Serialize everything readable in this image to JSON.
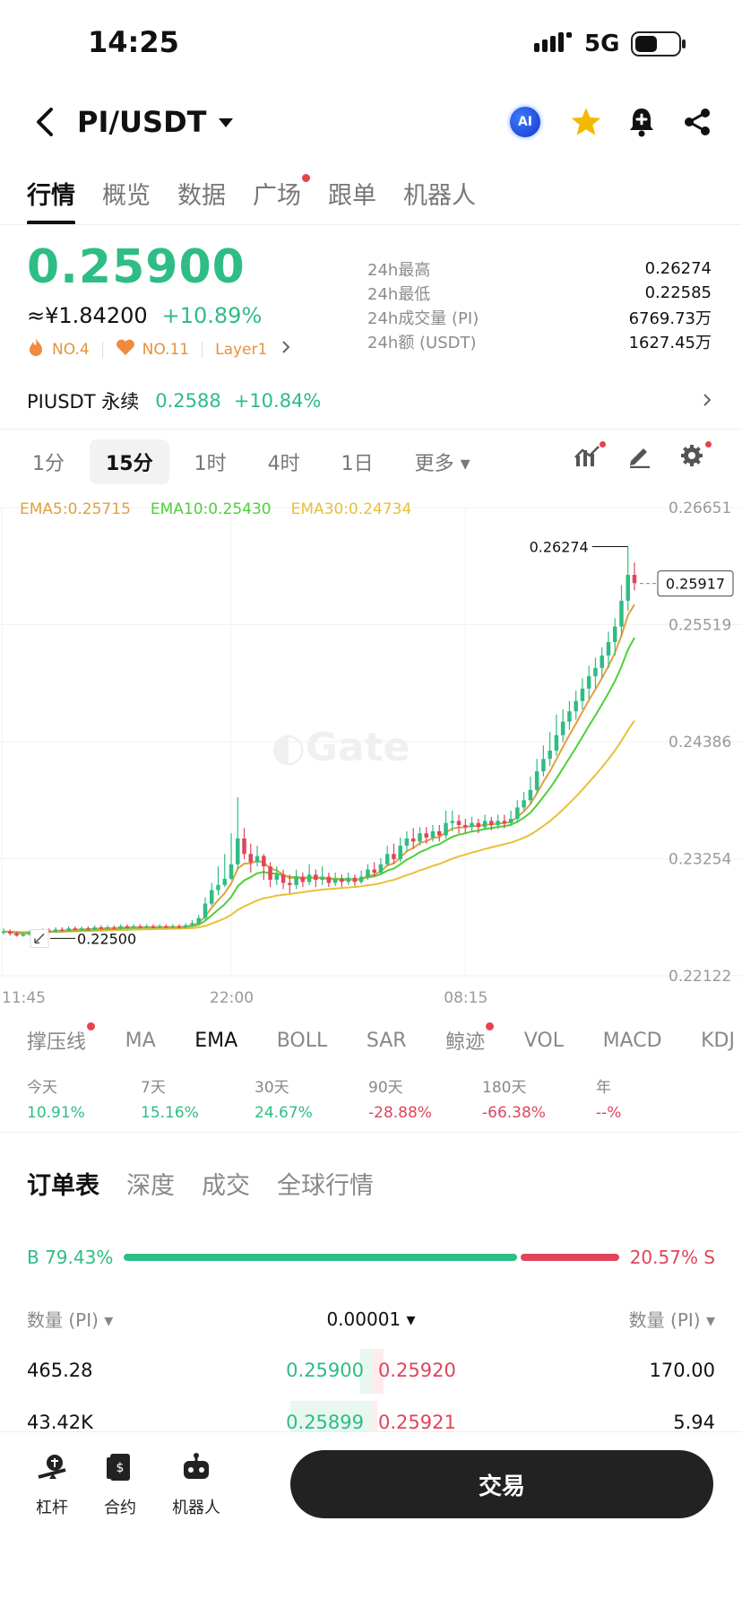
{
  "status_bar": {
    "time": "14:25",
    "network": "5G"
  },
  "header": {
    "pair": "PI/USDT",
    "ai_label": "AI"
  },
  "tabs": [
    {
      "label": "行情",
      "active": true
    },
    {
      "label": "概览"
    },
    {
      "label": "数据"
    },
    {
      "label": "广场",
      "dot": true
    },
    {
      "label": "跟单"
    },
    {
      "label": "机器人"
    }
  ],
  "price": {
    "last": "0.25900",
    "cny": "≈¥1.84200",
    "change": "+10.89%",
    "tags": [
      "NO.4",
      "NO.11",
      "Layer1"
    ]
  },
  "stats": [
    {
      "label": "24h最高",
      "value": "0.26274"
    },
    {
      "label": "24h最低",
      "value": "0.22585"
    },
    {
      "label": "24h成交量 (PI)",
      "value": "6769.73万"
    },
    {
      "label": "24h额 (USDT)",
      "value": "1627.45万"
    }
  ],
  "perp": {
    "name": "PIUSDT 永续",
    "price": "0.2588",
    "change": "+10.84%"
  },
  "timeframes": [
    {
      "label": "1分"
    },
    {
      "label": "15分",
      "active": true
    },
    {
      "label": "1时"
    },
    {
      "label": "4时"
    },
    {
      "label": "1日"
    },
    {
      "label": "更多 ▾"
    }
  ],
  "ema": {
    "ema5": "EMA5:0.25715",
    "ema10": "EMA10:0.25430",
    "ema30": "EMA30:0.24734"
  },
  "colors": {
    "up": "#2ebd85",
    "down": "#e0455b",
    "ema5": "#e2a03d",
    "ema10": "#4fcf3b",
    "ema30": "#e8c03a"
  },
  "chart_data": {
    "type": "candlestick",
    "y_ticks": [
      "0.26651",
      "0.25519",
      "0.24386",
      "0.23254",
      "0.22122"
    ],
    "x_ticks": [
      "11:45",
      "22:00",
      "08:15"
    ],
    "ylim": [
      0.22122,
      0.26651
    ],
    "high_label": "0.26274",
    "low_label": "0.22500",
    "current_label": "0.25917",
    "watermark": "Gate",
    "candles": [
      [
        0.2255,
        0.2255,
        0.2258,
        0.2252
      ],
      [
        0.2255,
        0.2253,
        0.2257,
        0.2251
      ],
      [
        0.2253,
        0.2251,
        0.2255,
        0.225
      ],
      [
        0.2251,
        0.2252,
        0.2254,
        0.225
      ],
      [
        0.2252,
        0.2254,
        0.2256,
        0.2251
      ],
      [
        0.2254,
        0.2255,
        0.2257,
        0.2253
      ],
      [
        0.2255,
        0.2256,
        0.2258,
        0.2254
      ],
      [
        0.2256,
        0.2255,
        0.2258,
        0.2254
      ],
      [
        0.2255,
        0.2257,
        0.2259,
        0.2254
      ],
      [
        0.2257,
        0.2256,
        0.2259,
        0.2255
      ],
      [
        0.2256,
        0.2258,
        0.226,
        0.2255
      ],
      [
        0.2258,
        0.2257,
        0.226,
        0.2256
      ],
      [
        0.2257,
        0.2258,
        0.226,
        0.2256
      ],
      [
        0.2258,
        0.2257,
        0.226,
        0.2256
      ],
      [
        0.2257,
        0.2259,
        0.2261,
        0.2256
      ],
      [
        0.2259,
        0.2258,
        0.2261,
        0.2257
      ],
      [
        0.2258,
        0.2259,
        0.2261,
        0.2257
      ],
      [
        0.2259,
        0.2258,
        0.2261,
        0.2257
      ],
      [
        0.2258,
        0.226,
        0.2262,
        0.2257
      ],
      [
        0.226,
        0.2259,
        0.2262,
        0.2258
      ],
      [
        0.2259,
        0.226,
        0.2262,
        0.2258
      ],
      [
        0.226,
        0.2259,
        0.2262,
        0.2258
      ],
      [
        0.2259,
        0.226,
        0.2262,
        0.2258
      ],
      [
        0.226,
        0.2259,
        0.2262,
        0.2258
      ],
      [
        0.2259,
        0.226,
        0.2262,
        0.2258
      ],
      [
        0.226,
        0.2259,
        0.2262,
        0.2258
      ],
      [
        0.2259,
        0.226,
        0.2262,
        0.2258
      ],
      [
        0.226,
        0.2259,
        0.2262,
        0.2258
      ],
      [
        0.2259,
        0.2261,
        0.2263,
        0.2258
      ],
      [
        0.2261,
        0.2263,
        0.2266,
        0.226
      ],
      [
        0.2263,
        0.2268,
        0.2271,
        0.2262
      ],
      [
        0.2268,
        0.2282,
        0.2288,
        0.2266
      ],
      [
        0.2282,
        0.2295,
        0.2302,
        0.228
      ],
      [
        0.2295,
        0.23,
        0.2318,
        0.229
      ],
      [
        0.23,
        0.2306,
        0.233,
        0.2298
      ],
      [
        0.2306,
        0.232,
        0.235,
        0.2305
      ],
      [
        0.232,
        0.2345,
        0.2385,
        0.2315
      ],
      [
        0.2345,
        0.233,
        0.2355,
        0.2325
      ],
      [
        0.233,
        0.2322,
        0.234,
        0.2312
      ],
      [
        0.2322,
        0.2328,
        0.2338,
        0.2318
      ],
      [
        0.2328,
        0.2318,
        0.233,
        0.2305
      ],
      [
        0.2318,
        0.2305,
        0.2322,
        0.2298
      ],
      [
        0.2305,
        0.231,
        0.2318,
        0.23
      ],
      [
        0.231,
        0.2302,
        0.2315,
        0.2296
      ],
      [
        0.2302,
        0.23,
        0.231,
        0.2292
      ],
      [
        0.23,
        0.2308,
        0.2315,
        0.2296
      ],
      [
        0.2308,
        0.2303,
        0.2312,
        0.2298
      ],
      [
        0.2303,
        0.231,
        0.232,
        0.23
      ],
      [
        0.231,
        0.2305,
        0.2315,
        0.2298
      ],
      [
        0.2305,
        0.2308,
        0.2318,
        0.23
      ],
      [
        0.2308,
        0.2302,
        0.2312,
        0.2298
      ],
      [
        0.2302,
        0.2306,
        0.2312,
        0.2299
      ],
      [
        0.2306,
        0.2303,
        0.231,
        0.2298
      ],
      [
        0.2303,
        0.2307,
        0.2312,
        0.23
      ],
      [
        0.2307,
        0.2303,
        0.231,
        0.2299
      ],
      [
        0.2303,
        0.2308,
        0.2314,
        0.2301
      ],
      [
        0.2308,
        0.2315,
        0.232,
        0.2305
      ],
      [
        0.2315,
        0.2312,
        0.2322,
        0.2308
      ],
      [
        0.2312,
        0.232,
        0.2326,
        0.231
      ],
      [
        0.232,
        0.233,
        0.2338,
        0.2318
      ],
      [
        0.233,
        0.2325,
        0.234,
        0.232
      ],
      [
        0.2325,
        0.2338,
        0.2346,
        0.2322
      ],
      [
        0.2338,
        0.2345,
        0.2352,
        0.2332
      ],
      [
        0.2345,
        0.2342,
        0.2355,
        0.2335
      ],
      [
        0.2342,
        0.235,
        0.2356,
        0.2338
      ],
      [
        0.235,
        0.2346,
        0.2356,
        0.234
      ],
      [
        0.2346,
        0.2352,
        0.2358,
        0.2342
      ],
      [
        0.2352,
        0.2348,
        0.2358,
        0.2342
      ],
      [
        0.2348,
        0.236,
        0.2372,
        0.2345
      ],
      [
        0.236,
        0.2362,
        0.2372,
        0.2352
      ],
      [
        0.2362,
        0.2358,
        0.2368,
        0.235
      ],
      [
        0.2358,
        0.2356,
        0.2364,
        0.235
      ],
      [
        0.2356,
        0.236,
        0.2366,
        0.2352
      ],
      [
        0.236,
        0.2356,
        0.2364,
        0.235
      ],
      [
        0.2356,
        0.2362,
        0.2368,
        0.2353
      ],
      [
        0.2362,
        0.2358,
        0.2366,
        0.2353
      ],
      [
        0.2358,
        0.2362,
        0.2368,
        0.2354
      ],
      [
        0.2362,
        0.236,
        0.2368,
        0.2355
      ],
      [
        0.236,
        0.2364,
        0.2372,
        0.2357
      ],
      [
        0.2364,
        0.2375,
        0.2382,
        0.236
      ],
      [
        0.2375,
        0.2382,
        0.239,
        0.2372
      ],
      [
        0.2382,
        0.2392,
        0.2405,
        0.2378
      ],
      [
        0.2392,
        0.241,
        0.2422,
        0.2388
      ],
      [
        0.241,
        0.2422,
        0.2435,
        0.2405
      ],
      [
        0.2422,
        0.243,
        0.2448,
        0.2415
      ],
      [
        0.243,
        0.2445,
        0.2465,
        0.2425
      ],
      [
        0.2445,
        0.2458,
        0.247,
        0.2438
      ],
      [
        0.2458,
        0.2468,
        0.2478,
        0.245
      ],
      [
        0.2468,
        0.2478,
        0.2488,
        0.246
      ],
      [
        0.2478,
        0.249,
        0.25,
        0.247
      ],
      [
        0.249,
        0.2502,
        0.2512,
        0.248
      ],
      [
        0.2502,
        0.251,
        0.252,
        0.249
      ],
      [
        0.251,
        0.2522,
        0.253,
        0.25
      ],
      [
        0.2522,
        0.2535,
        0.2545,
        0.251
      ],
      [
        0.2535,
        0.255,
        0.2558,
        0.2522
      ],
      [
        0.255,
        0.2575,
        0.259,
        0.254
      ],
      [
        0.2575,
        0.26,
        0.2627,
        0.2565
      ],
      [
        0.26,
        0.2592,
        0.2612,
        0.2585
      ]
    ]
  },
  "indicators": [
    {
      "label": "撑压线",
      "dot": true
    },
    {
      "label": "MA"
    },
    {
      "label": "EMA",
      "active": true
    },
    {
      "label": "BOLL"
    },
    {
      "label": "SAR"
    },
    {
      "label": "鲸迹",
      "dot": true
    },
    {
      "label": "VOL"
    },
    {
      "label": "MACD"
    },
    {
      "label": "KDJ"
    }
  ],
  "performance": [
    {
      "label": "今天",
      "value": "10.91%",
      "dir": "up"
    },
    {
      "label": "7天",
      "value": "15.16%",
      "dir": "up"
    },
    {
      "label": "30天",
      "value": "24.67%",
      "dir": "up"
    },
    {
      "label": "90天",
      "value": "-28.88%",
      "dir": "down"
    },
    {
      "label": "180天",
      "value": "-66.38%",
      "dir": "down"
    },
    {
      "label": "年",
      "value": "--%",
      "dir": "down"
    }
  ],
  "orderbook_tabs": [
    {
      "label": "订单表",
      "active": true
    },
    {
      "label": "深度"
    },
    {
      "label": "成交"
    },
    {
      "label": "全球行情"
    }
  ],
  "ratio": {
    "buy_label": "B 79.43%",
    "sell_label": "20.57% S",
    "buy_pct": 79.43
  },
  "orderbook_header": {
    "left": "数量 (PI) ▾",
    "center": "0.00001 ▾",
    "right": "数量 (PI) ▾"
  },
  "orderbook_rows": [
    {
      "bid_qty": "465.28",
      "bid_price": "0.25900",
      "ask_price": "0.25920",
      "ask_qty": "170.00",
      "bid_depth": 0.12,
      "ask_depth": 0.02
    },
    {
      "bid_qty": "43.42K",
      "bid_price": "0.25899",
      "ask_price": "0.25921",
      "ask_qty": "5.94",
      "bid_depth": 0.9,
      "ask_depth": 0.01
    }
  ],
  "bottom_nav": [
    {
      "label": "杠杆",
      "icon": "leverage-icon"
    },
    {
      "label": "合约",
      "icon": "contract-icon"
    },
    {
      "label": "机器人",
      "icon": "robot-icon"
    }
  ],
  "trade_button": "交易"
}
